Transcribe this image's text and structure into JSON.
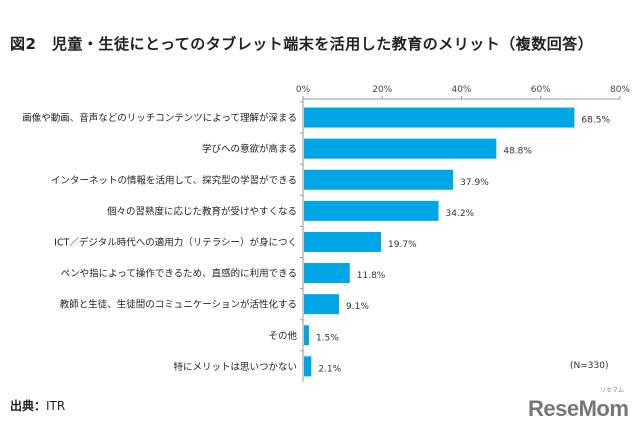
{
  "title": "図2　児童・生徒にとってのタブレット端末を活用した教育のメリット（複数回答）",
  "source_label": "出典：",
  "source_value": "ITR",
  "sample_note": "(N=330)",
  "logo": "ReseMom",
  "logo_ruby": "リセマム",
  "chart_data": {
    "type": "bar",
    "orientation": "horizontal",
    "title": "図2　児童・生徒にとってのタブレット端末を活用した教育のメリット（複数回答）",
    "categories": [
      "画像や動画、音声などのリッチコンテンツによって理解が深まる",
      "学びへの意欲が高まる",
      "インターネットの情報を活用して、探究型の学習ができる",
      "個々の習熟度に応じた教育が受けやすくなる",
      "ICT／デジタル時代への適用力（リテラシー）が身につく",
      "ペンや指によって操作できるため、直感的に利用できる",
      "教師と生徒、生徒間のコミュニケーションが活性化する",
      "その他",
      "特にメリットは思いつかない"
    ],
    "values": [
      68.5,
      48.8,
      37.9,
      34.2,
      19.7,
      11.8,
      9.1,
      1.5,
      2.1
    ],
    "value_labels": [
      "68.5%",
      "48.8%",
      "37.9%",
      "34.2%",
      "19.7%",
      "11.8%",
      "9.1%",
      "1.5%",
      "2.1%"
    ],
    "xlim": [
      0,
      80
    ],
    "ticks": [
      "0%",
      "20%",
      "40%",
      "60%",
      "80%"
    ],
    "tick_values": [
      0,
      20,
      40,
      60,
      80
    ],
    "axis_position": "top",
    "grid": false,
    "bar_color": "#00a6e6",
    "note": "(N=330)"
  }
}
